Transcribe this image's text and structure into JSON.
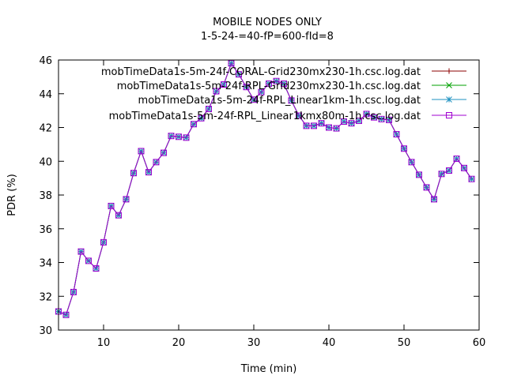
{
  "chart_data": {
    "type": "line",
    "title": "MOBILE NODES ONLY",
    "subtitle": "1-5-24-=40-fP=600-fId=8",
    "xlabel": "Time (min)",
    "ylabel": "PDR (%)",
    "xlim": [
      4,
      60
    ],
    "ylim": [
      30,
      46
    ],
    "xticks": [
      10,
      20,
      30,
      40,
      50,
      60
    ],
    "yticks": [
      30,
      32,
      34,
      36,
      38,
      40,
      42,
      44,
      46
    ],
    "grid": false,
    "legend_position": "top-right",
    "x": [
      4,
      5,
      6,
      7,
      8,
      9,
      10,
      11,
      12,
      13,
      14,
      15,
      16,
      17,
      18,
      19,
      20,
      21,
      22,
      23,
      24,
      25,
      26,
      27,
      28,
      29,
      30,
      31,
      32,
      33,
      34,
      35,
      36,
      37,
      38,
      39,
      40,
      41,
      42,
      43,
      44,
      45,
      46,
      47,
      48,
      49,
      50,
      51,
      52,
      53,
      54,
      55,
      56,
      57,
      58,
      59
    ],
    "series": [
      {
        "name": "mobTimeData1s-5m-24f-CORAL-Grid230mx230-1h.csc.log.dat",
        "color": "#8b0000",
        "marker": "plus",
        "values": [
          31.1,
          30.9,
          32.25,
          34.65,
          34.1,
          33.65,
          35.2,
          37.35,
          36.8,
          37.75,
          39.3,
          40.6,
          39.35,
          39.95,
          40.5,
          41.5,
          41.45,
          41.4,
          42.2,
          42.55,
          43.1,
          44.15,
          44.55,
          45.8,
          45.15,
          44.4,
          43.65,
          44.1,
          44.6,
          44.75,
          44.6,
          43.6,
          42.7,
          42.1,
          42.1,
          42.25,
          42.0,
          41.95,
          42.35,
          42.25,
          42.4,
          42.8,
          42.6,
          42.5,
          42.45,
          41.6,
          40.75,
          39.95,
          39.2,
          38.45,
          37.75,
          39.25,
          39.45,
          40.15,
          39.6,
          38.95
        ]
      },
      {
        "name": "mobTimeData1s-5m-24f-RPL-Grid230mx230-1h.csc.log.dat",
        "color": "#00a000",
        "marker": "cross",
        "values": [
          31.1,
          30.9,
          32.25,
          34.65,
          34.1,
          33.65,
          35.2,
          37.35,
          36.8,
          37.75,
          39.3,
          40.6,
          39.35,
          39.95,
          40.5,
          41.5,
          41.45,
          41.4,
          42.2,
          42.55,
          43.1,
          44.15,
          44.55,
          45.8,
          45.15,
          44.4,
          43.65,
          44.1,
          44.6,
          44.75,
          44.6,
          43.6,
          42.7,
          42.1,
          42.1,
          42.25,
          42.0,
          41.95,
          42.35,
          42.25,
          42.4,
          42.8,
          42.6,
          42.5,
          42.45,
          41.6,
          40.75,
          39.95,
          39.2,
          38.45,
          37.75,
          39.25,
          39.45,
          40.15,
          39.6,
          38.95
        ]
      },
      {
        "name": "mobTimeData1s-5m-24f-RPL_Linear1km-1h.csc.log.dat",
        "color": "#1e90c0",
        "marker": "star",
        "values": [
          31.1,
          30.9,
          32.25,
          34.65,
          34.1,
          33.65,
          35.2,
          37.35,
          36.8,
          37.75,
          39.3,
          40.6,
          39.35,
          39.95,
          40.5,
          41.5,
          41.45,
          41.4,
          42.2,
          42.55,
          43.1,
          44.15,
          44.55,
          45.8,
          45.15,
          44.4,
          43.65,
          44.1,
          44.6,
          44.75,
          44.6,
          43.6,
          42.7,
          42.1,
          42.1,
          42.25,
          42.0,
          41.95,
          42.35,
          42.25,
          42.4,
          42.8,
          42.6,
          42.5,
          42.45,
          41.6,
          40.75,
          39.95,
          39.2,
          38.45,
          37.75,
          39.25,
          39.45,
          40.15,
          39.6,
          38.95
        ]
      },
      {
        "name": "mobTimeData1s-5m-24f-RPL_Linear1kmx80m-1h.csc.log.dat",
        "color": "#a000d0",
        "marker": "square",
        "values": [
          31.1,
          30.9,
          32.25,
          34.65,
          34.1,
          33.65,
          35.2,
          37.35,
          36.8,
          37.75,
          39.3,
          40.6,
          39.35,
          39.95,
          40.5,
          41.5,
          41.45,
          41.4,
          42.2,
          42.55,
          43.1,
          44.15,
          44.55,
          45.8,
          45.15,
          44.4,
          43.65,
          44.1,
          44.6,
          44.75,
          44.6,
          43.6,
          42.7,
          42.1,
          42.1,
          42.25,
          42.0,
          41.95,
          42.35,
          42.25,
          42.4,
          42.8,
          42.6,
          42.5,
          42.45,
          41.6,
          40.75,
          39.95,
          39.2,
          38.45,
          37.75,
          39.25,
          39.45,
          40.15,
          39.6,
          38.95
        ]
      }
    ]
  }
}
